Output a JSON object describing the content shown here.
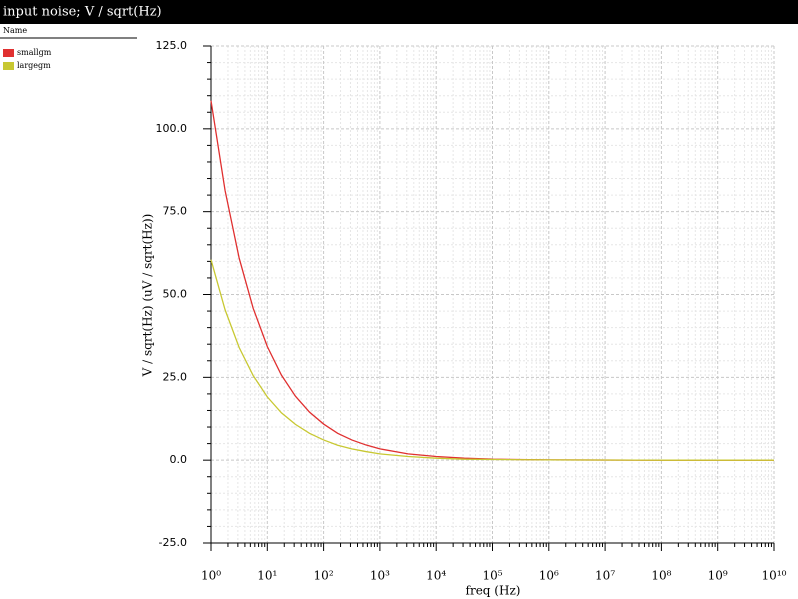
{
  "window_title": "input noise; V / sqrt(Hz)",
  "legend_header": "Name",
  "chart_data": {
    "type": "line",
    "xlabel": "freq (Hz)",
    "ylabel": "V / sqrt(Hz) (uV / sqrt(Hz))",
    "xscale": "log",
    "grid": true,
    "x": [
      1,
      1.778,
      3.162,
      5.623,
      10,
      17.78,
      31.62,
      56.23,
      100,
      177.8,
      316.2,
      562.3,
      1000,
      3162,
      10000,
      31620,
      100000,
      1000000,
      100000000,
      10000000000
    ],
    "series": [
      {
        "name": "smallgm",
        "color": "#e03030",
        "values": [
          108.5,
          81.4,
          61.0,
          45.8,
          34.3,
          25.7,
          19.3,
          14.5,
          10.9,
          8.1,
          6.1,
          4.6,
          3.4,
          1.9,
          1.1,
          0.6,
          0.3,
          0.1,
          0.0,
          0.0
        ]
      },
      {
        "name": "largegm",
        "color": "#c8c832",
        "values": [
          60.5,
          45.4,
          34.0,
          25.5,
          19.1,
          14.3,
          10.8,
          8.1,
          6.1,
          4.5,
          3.4,
          2.6,
          1.9,
          1.1,
          0.6,
          0.3,
          0.2,
          0.1,
          0.0,
          0.0
        ]
      }
    ],
    "xlim": [
      1,
      10000000000
    ],
    "xticks": [
      {
        "value": 1,
        "label": "10⁰"
      },
      {
        "value": 10,
        "label": "10¹"
      },
      {
        "value": 100,
        "label": "10²"
      },
      {
        "value": 1000,
        "label": "10³"
      },
      {
        "value": 10000,
        "label": "10⁴"
      },
      {
        "value": 100000,
        "label": "10⁵"
      },
      {
        "value": 1000000,
        "label": "10⁶"
      },
      {
        "value": 10000000,
        "label": "10⁷"
      },
      {
        "value": 100000000,
        "label": "10⁸"
      },
      {
        "value": 1000000000,
        "label": "10⁹"
      },
      {
        "value": 10000000000,
        "label": "10¹⁰"
      }
    ],
    "ylim": [
      -25,
      125
    ],
    "yticks": [
      {
        "value": -25,
        "label": "-25.0"
      },
      {
        "value": 0,
        "label": "0.0"
      },
      {
        "value": 25,
        "label": "25.0"
      },
      {
        "value": 50,
        "label": "50.0"
      },
      {
        "value": 75,
        "label": "75.0"
      },
      {
        "value": 100,
        "label": "100.0"
      },
      {
        "value": 125,
        "label": "125.0"
      }
    ]
  }
}
